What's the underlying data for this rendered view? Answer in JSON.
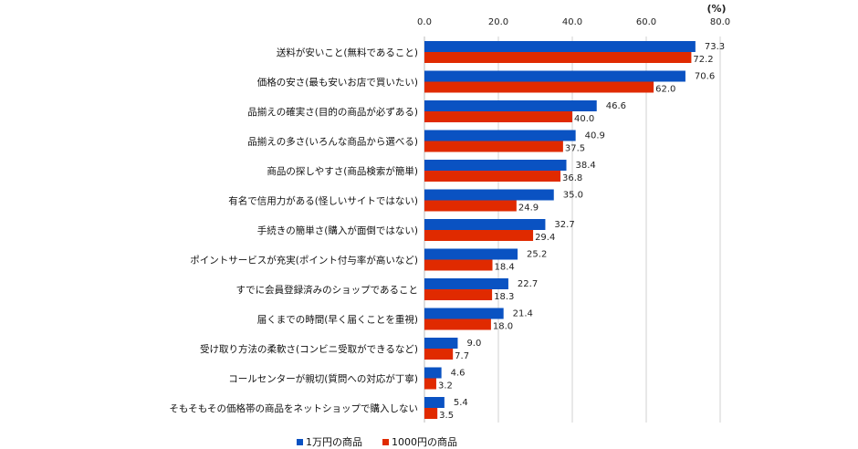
{
  "chart_data": {
    "type": "bar",
    "orientation": "horizontal",
    "unit_label": "(%)",
    "xlim": [
      0,
      80
    ],
    "ticks": [
      "0.0",
      "20.0",
      "40.0",
      "60.0",
      "80.0"
    ],
    "tick_values": [
      0,
      20,
      40,
      60,
      80
    ],
    "grid": true,
    "legend_position": "bottom",
    "categories": [
      "送料が安いこと(無料であること)",
      "価格の安さ(最も安いお店で買いたい)",
      "品揃えの確実さ(目的の商品が必ずある)",
      "品揃えの多さ(いろんな商品から選べる)",
      "商品の探しやすさ(商品検索が簡単)",
      "有名で信用力がある(怪しいサイトではない)",
      "手続きの簡単さ(購入が面倒ではない)",
      "ポイントサービスが充実(ポイント付与率が高いなど)",
      "すでに会員登録済みのショップであること",
      "届くまでの時間(早く届くことを重視)",
      "受け取り方法の柔軟さ(コンビニ受取ができるなど)",
      "コールセンターが親切(質問への対応が丁寧)",
      "そもそもその価格帯の商品をネットショップで購入しない"
    ],
    "series": [
      {
        "name": "1万円の商品",
        "color": "#0a52c2",
        "values": [
          73.3,
          70.6,
          46.6,
          40.9,
          38.4,
          35.0,
          32.7,
          25.2,
          22.7,
          21.4,
          9.0,
          4.6,
          5.4
        ]
      },
      {
        "name": "1000円の商品",
        "color": "#e02a00",
        "values": [
          72.2,
          62.0,
          40.0,
          37.5,
          36.8,
          24.9,
          29.4,
          18.4,
          18.3,
          18.0,
          7.7,
          3.2,
          3.5
        ]
      }
    ]
  }
}
